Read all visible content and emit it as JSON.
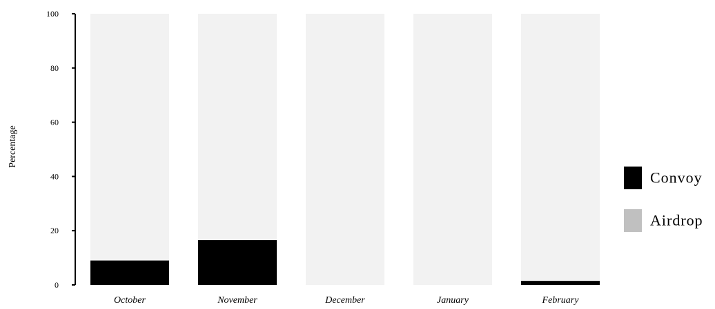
{
  "chart_data": {
    "type": "bar",
    "stacked": true,
    "categories": [
      "October",
      "November",
      "December",
      "January",
      "February"
    ],
    "series": [
      {
        "name": "Convoy",
        "values": [
          9,
          16.5,
          0,
          0,
          1.5
        ],
        "color": "#000000"
      },
      {
        "name": "Airdrop",
        "values": [
          91,
          83.5,
          100,
          100,
          98.5
        ],
        "color": "#f2f2f2",
        "legend_color": "#c0c0c0"
      }
    ],
    "ylabel": "Percentage",
    "ylim": [
      0,
      100
    ],
    "yticks": [
      0,
      20,
      40,
      60,
      80,
      100
    ],
    "grid": false,
    "legend_position": "right"
  }
}
